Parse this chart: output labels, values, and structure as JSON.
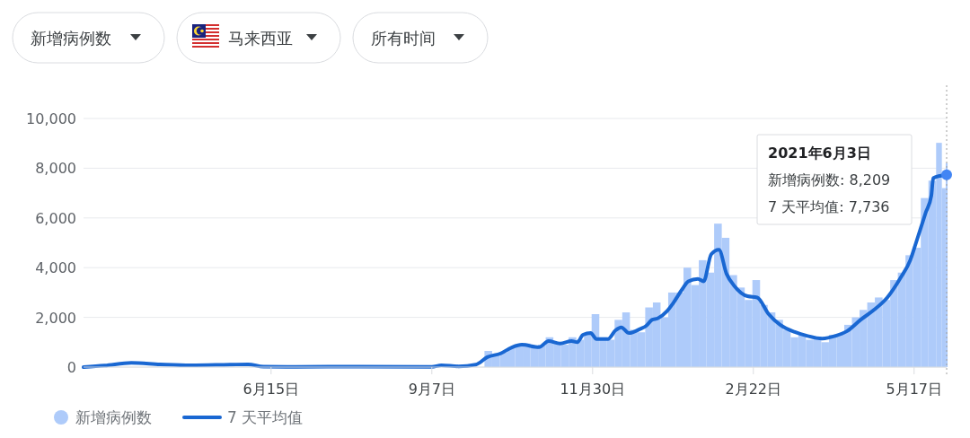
{
  "chart_data": {
    "type": "bar",
    "ylim": [
      0,
      10000
    ],
    "yticks": [
      0,
      {
        "value": 2000,
        "label": "2,000"
      },
      {
        "value": 4000,
        "label": "4,000"
      },
      {
        "value": 6000,
        "label": "6,000"
      },
      {
        "value": 8000,
        "label": "8,000"
      },
      {
        "value": 10000,
        "label": "10,000"
      }
    ],
    "xlim": [
      "2020-03-09",
      "2021-06-03"
    ],
    "xticks": [
      {
        "value": "2020-06-15",
        "label": "6月15日"
      },
      {
        "value": "2020-09-07",
        "label": "9月7日"
      },
      {
        "value": "2020-11-30",
        "label": "11月30日"
      },
      {
        "value": "2021-02-22",
        "label": "2月22日"
      },
      {
        "value": "2021-05-17",
        "label": "5月17日"
      }
    ],
    "grid": "y",
    "legend": "bottom left",
    "ref_lines": [
      {
        "axis": "x",
        "value": "2021-06-03",
        "color": "#9e9e9e",
        "line_style": "dotted"
      }
    ],
    "annotations": [
      "新增病例数",
      "马来西亚",
      "所有时间",
      "2021年6月3日",
      "新增病例数: 8,209",
      "7 天平均值: 7,736"
    ],
    "series": [
      {
        "name": "新增病例数",
        "color": "#aecbfa",
        "x": [
          "2020-10-05",
          "2020-10-09",
          "2020-10-13",
          "2020-10-17",
          "2020-10-21",
          "2020-10-25",
          "2020-10-29",
          "2020-11-02",
          "2020-11-06",
          "2020-11-10",
          "2020-11-14",
          "2020-11-18",
          "2020-11-22",
          "2020-11-26",
          "2020-11-30",
          "2020-12-04",
          "2020-12-08",
          "2020-12-12",
          "2020-12-16",
          "2020-12-20",
          "2020-12-24",
          "2020-12-28",
          "2021-01-01",
          "2021-01-05",
          "2021-01-09",
          "2021-01-13",
          "2021-01-17",
          "2021-01-21",
          "2021-01-25",
          "2021-01-29",
          "2021-02-02",
          "2021-02-06",
          "2021-02-10",
          "2021-02-14",
          "2021-02-18",
          "2021-02-22",
          "2021-02-26",
          "2021-03-02",
          "2021-03-06",
          "2021-03-10",
          "2021-03-14",
          "2021-03-18",
          "2021-03-22",
          "2021-03-26",
          "2021-03-30",
          "2021-04-03",
          "2021-04-07",
          "2021-04-11",
          "2021-04-15",
          "2021-04-19",
          "2021-04-23",
          "2021-04-27",
          "2021-05-01",
          "2021-05-05",
          "2021-05-09",
          "2021-05-13",
          "2021-05-17",
          "2021-05-21",
          "2021-05-25",
          "2021-05-29",
          "2021-06-01",
          "2021-06-03"
        ],
        "values": [
          650,
          500,
          600,
          800,
          900,
          950,
          800,
          900,
          1200,
          1000,
          900,
          1200,
          1100,
          1300,
          2130,
          1200,
          1100,
          1900,
          2200,
          1500,
          1400,
          2400,
          2600,
          2000,
          3000,
          3000,
          4000,
          3300,
          4300,
          3800,
          5770,
          5200,
          3700,
          3200,
          2700,
          3500,
          2500,
          2200,
          1900,
          1500,
          1200,
          1300,
          1100,
          1200,
          1000,
          1300,
          1300,
          1700,
          2000,
          2300,
          2600,
          2800,
          2700,
          3500,
          3800,
          4500,
          4800,
          6800,
          7500,
          9020,
          7200,
          8209
        ]
      },
      {
        "name": "7 天平均值",
        "type": "line",
        "color": "#1967d2",
        "x": [
          "2020-03-09",
          "2020-03-20",
          "2020-04-03",
          "2020-04-18",
          "2020-05-04",
          "2020-05-25",
          "2020-06-03",
          "2020-06-11",
          "2020-06-28",
          "2020-07-31",
          "2020-09-07",
          "2020-09-12",
          "2020-09-21",
          "2020-09-30",
          "2020-10-06",
          "2020-10-13",
          "2020-10-19",
          "2020-10-24",
          "2020-11-02",
          "2020-11-07",
          "2020-11-13",
          "2020-11-19",
          "2020-11-22",
          "2020-11-25",
          "2020-11-29",
          "2020-12-02",
          "2020-12-08",
          "2020-12-12",
          "2020-12-15",
          "2020-12-19",
          "2020-12-25",
          "2020-12-28",
          "2020-12-31",
          "2021-01-03",
          "2021-01-08",
          "2021-01-11",
          "2021-01-16",
          "2021-01-19",
          "2021-01-24",
          "2021-01-27",
          "2021-01-31",
          "2021-02-04",
          "2021-02-08",
          "2021-02-12",
          "2021-02-19",
          "2021-02-24",
          "2021-03-02",
          "2021-03-08",
          "2021-03-16",
          "2021-03-22",
          "2021-03-30",
          "2021-04-06",
          "2021-04-12",
          "2021-04-19",
          "2021-04-26",
          "2021-05-03",
          "2021-05-10",
          "2021-05-15",
          "2021-05-18",
          "2021-05-23",
          "2021-05-26",
          "2021-05-27",
          "2021-05-31",
          "2021-06-03"
        ],
        "values": [
          0,
          60,
          170,
          110,
          70,
          100,
          110,
          20,
          10,
          20,
          10,
          70,
          30,
          100,
          400,
          550,
          800,
          900,
          800,
          1050,
          950,
          1050,
          1000,
          1300,
          1370,
          1130,
          1130,
          1480,
          1600,
          1370,
          1540,
          1660,
          1900,
          1960,
          2260,
          2560,
          3150,
          3450,
          3550,
          3450,
          4540,
          4720,
          3750,
          3270,
          2850,
          2800,
          2130,
          1700,
          1400,
          1260,
          1150,
          1260,
          1450,
          1900,
          2300,
          2800,
          3600,
          4300,
          5000,
          6200,
          6900,
          7600,
          7700,
          7736
        ]
      }
    ]
  }
}
